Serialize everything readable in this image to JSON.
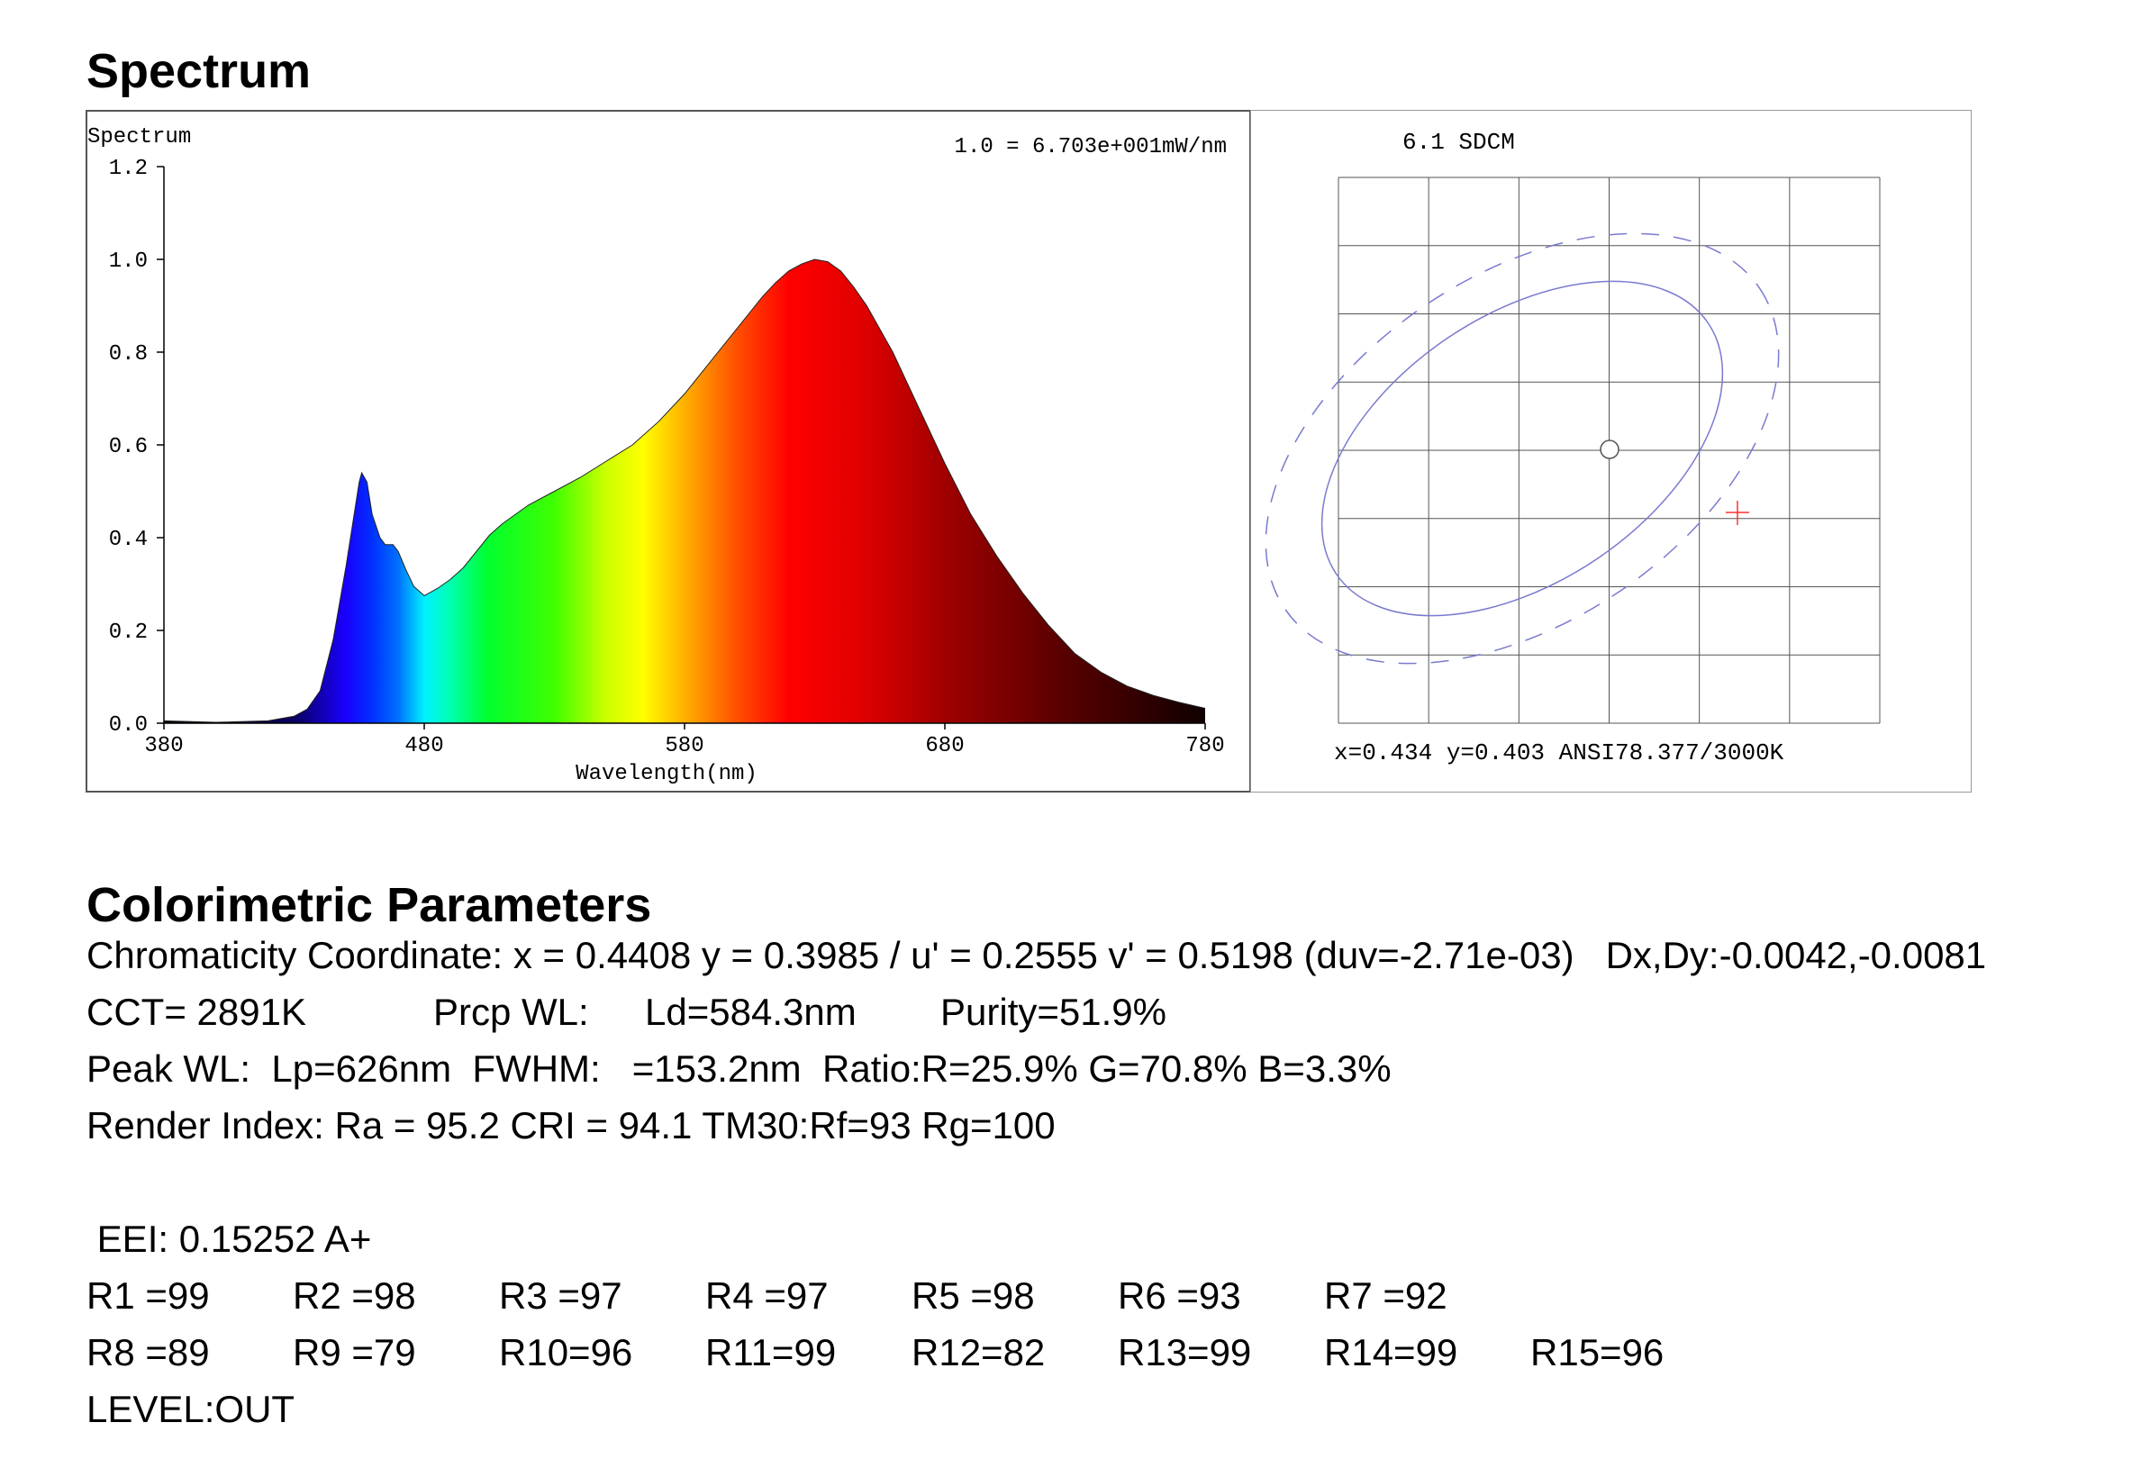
{
  "headings": {
    "spectrum": "Spectrum",
    "colorimetric": "Colorimetric Parameters"
  },
  "chart_data": [
    {
      "type": "area",
      "title": "Spectrum",
      "scale_note": "1.0 = 6.703e+001mW/nm",
      "xlabel": "Wavelength(nm)",
      "ylabel": "",
      "xlim": [
        380,
        780
      ],
      "ylim": [
        0,
        1.2
      ],
      "x_ticks": [
        "380",
        "480",
        "580",
        "680",
        "780"
      ],
      "y_ticks": [
        "0.0",
        "0.2",
        "0.4",
        "0.6",
        "0.8",
        "1.0",
        "1.2"
      ],
      "fill": "spectral color gradient",
      "x": [
        380,
        400,
        420,
        430,
        435,
        440,
        445,
        450,
        455,
        456,
        458,
        460,
        463,
        465,
        468,
        470,
        473,
        476,
        480,
        485,
        490,
        495,
        500,
        505,
        510,
        520,
        530,
        540,
        550,
        560,
        570,
        580,
        590,
        600,
        610,
        615,
        620,
        625,
        630,
        635,
        640,
        645,
        650,
        660,
        670,
        680,
        690,
        700,
        710,
        720,
        730,
        740,
        750,
        760,
        770,
        780
      ],
      "y": [
        0.005,
        0.002,
        0.005,
        0.015,
        0.03,
        0.07,
        0.18,
        0.34,
        0.52,
        0.54,
        0.52,
        0.45,
        0.4,
        0.385,
        0.385,
        0.37,
        0.33,
        0.295,
        0.275,
        0.29,
        0.31,
        0.335,
        0.37,
        0.405,
        0.43,
        0.47,
        0.5,
        0.53,
        0.565,
        0.6,
        0.65,
        0.71,
        0.78,
        0.85,
        0.92,
        0.95,
        0.975,
        0.99,
        1.0,
        0.995,
        0.975,
        0.94,
        0.9,
        0.8,
        0.68,
        0.56,
        0.45,
        0.36,
        0.28,
        0.21,
        0.15,
        0.11,
        0.08,
        0.06,
        0.045,
        0.032
      ]
    },
    {
      "type": "scatter",
      "title": "6.1 SDCM",
      "caption": "x=0.434 y=0.403 ANSI78.377/3000K",
      "grid": true,
      "target_marker": "circle",
      "measured_marker": "red cross",
      "ellipses": [
        "solid",
        "dashed"
      ]
    }
  ],
  "params": {
    "chromaticity": "Chromaticity Coordinate: x = 0.4408 y = 0.3985 / u' = 0.2555 v' = 0.5198 (duv=-2.71e-03)   Dx,Dy:-0.0042,-0.0081",
    "cct": "CCT=  2891K",
    "prcp_label": "Prcp WL:",
    "ld": "Ld=584.3nm",
    "purity": "Purity=51.9%",
    "peak": "Peak WL:  Lp=626nm  FWHM:   =153.2nm  Ratio:R=25.9% G=70.8% B=3.3%",
    "render": "Render Index: Ra = 95.2 CRI = 94.1 TM30:Rf=93 Rg=100",
    "eei": " EEI: 0.15252 A+",
    "r_row1": [
      "R1 =99",
      "R2 =98",
      "R3 =97",
      "R4 =97",
      "R5 =98",
      "R6 =93",
      "R7 =92"
    ],
    "r_row2": [
      "R8 =89",
      "R9 =79",
      "R10=96",
      "R11=99",
      "R12=82",
      "R13=99",
      "R14=99",
      "R15=96"
    ],
    "level": "LEVEL:OUT"
  }
}
